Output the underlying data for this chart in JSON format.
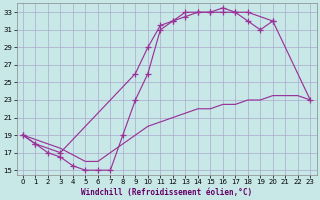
{
  "bg_color": "#c8e8e8",
  "grid_color": "#aaaacc",
  "line_color": "#993399",
  "xlabel": "Windchill (Refroidissement éolien,°C)",
  "xlim": [
    -0.5,
    23.5
  ],
  "ylim": [
    14.5,
    34.0
  ],
  "xticks": [
    0,
    1,
    2,
    3,
    4,
    5,
    6,
    7,
    8,
    9,
    10,
    11,
    12,
    13,
    14,
    15,
    16,
    17,
    18,
    19,
    20,
    21,
    22,
    23
  ],
  "yticks": [
    15,
    17,
    19,
    21,
    23,
    25,
    27,
    29,
    31,
    33
  ],
  "curve_upper_x": [
    0,
    1,
    3,
    9,
    10,
    11,
    12,
    13,
    14,
    15,
    16,
    17,
    18,
    20,
    23
  ],
  "curve_upper_y": [
    19,
    18,
    17,
    26,
    29,
    31.5,
    32,
    32.5,
    33,
    33,
    33.5,
    33,
    33,
    32,
    23
  ],
  "curve_mid_x": [
    0,
    1,
    2,
    3,
    4,
    5,
    6,
    7,
    8,
    9,
    10,
    11,
    12,
    13,
    14,
    15,
    16,
    17,
    18,
    19,
    20
  ],
  "curve_mid_y": [
    19,
    18,
    17,
    16.5,
    15.5,
    15,
    15,
    15,
    19,
    23,
    26,
    31,
    32,
    33,
    33,
    33,
    33,
    33,
    32,
    31,
    32
  ],
  "curve_lower_x": [
    0,
    3,
    5,
    6,
    7,
    8,
    9,
    10,
    11,
    12,
    13,
    14,
    15,
    16,
    17,
    18,
    19,
    20,
    21,
    22,
    23
  ],
  "curve_lower_y": [
    19,
    17.5,
    16,
    16,
    17,
    18,
    19,
    20,
    20.5,
    21,
    21.5,
    22,
    22,
    22.5,
    22.5,
    23,
    23,
    23.5,
    23.5,
    23.5,
    23
  ],
  "marker": "+",
  "lw": 0.85,
  "ms": 4.0,
  "mew": 0.9,
  "tick_labelsize": 5,
  "xlabel_fontsize": 5.5
}
